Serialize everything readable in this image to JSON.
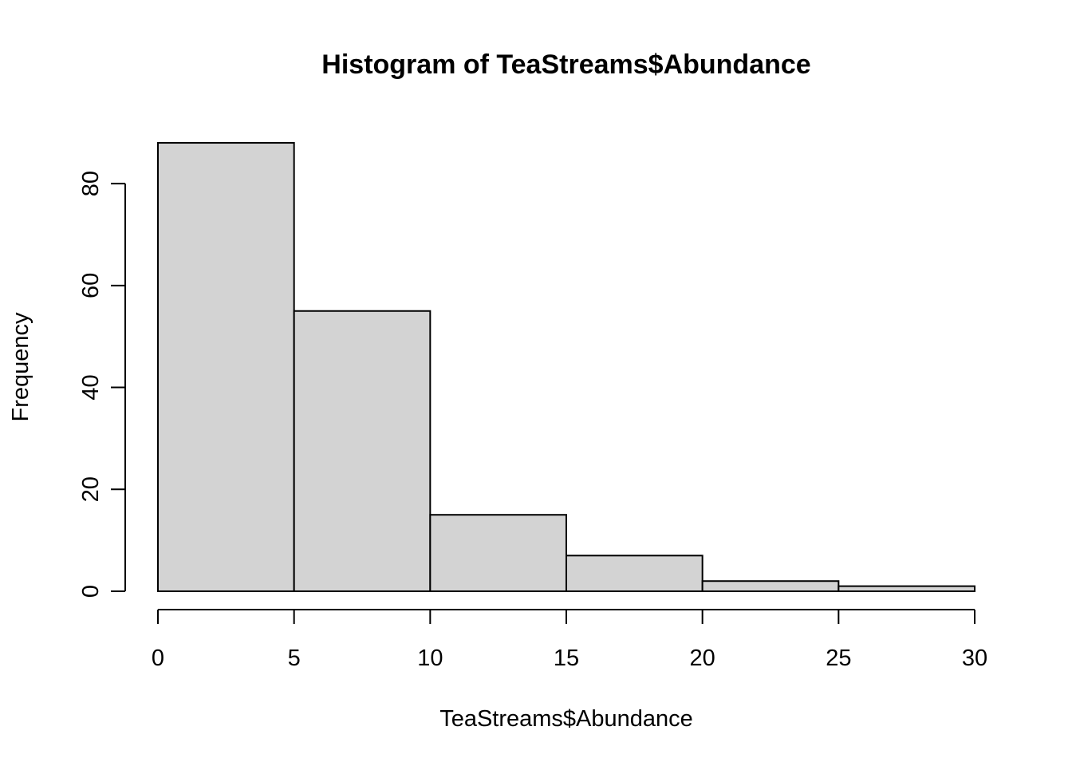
{
  "chart_data": {
    "type": "bar",
    "title": "Histogram of TeaStreams$Abundance",
    "xlabel": "TeaStreams$Abundance",
    "ylabel": "Frequency",
    "bin_edges": [
      0,
      5,
      10,
      15,
      20,
      25,
      30
    ],
    "values": [
      88,
      55,
      15,
      7,
      2,
      1
    ],
    "x_ticks": [
      0,
      5,
      10,
      15,
      20,
      25,
      30
    ],
    "y_ticks": [
      0,
      20,
      40,
      60,
      80
    ],
    "xlim": [
      0,
      30
    ],
    "ylim": [
      0,
      88
    ],
    "grid": false,
    "legend": "none",
    "bar_fill": "#d3d3d3",
    "bar_stroke": "#000000"
  }
}
